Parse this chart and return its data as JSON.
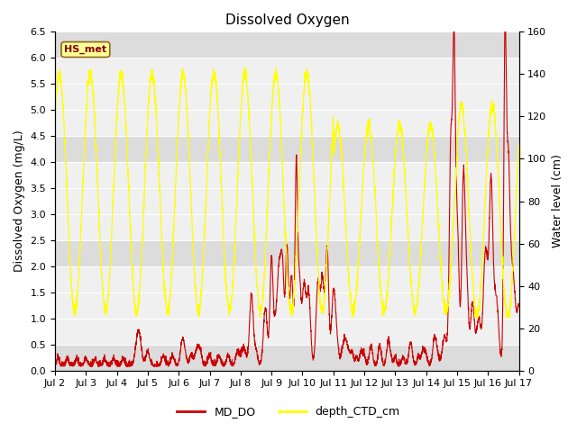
{
  "title": "Dissolved Oxygen",
  "ylabel_left": "Dissolved Oxygen (mg/L)",
  "ylabel_right": "Water level (cm)",
  "ylim_left": [
    0.0,
    6.5
  ],
  "ylim_right": [
    0,
    160
  ],
  "yticks_left": [
    0.0,
    0.5,
    1.0,
    1.5,
    2.0,
    2.5,
    3.0,
    3.5,
    4.0,
    4.5,
    5.0,
    5.5,
    6.0,
    6.5
  ],
  "yticks_right": [
    0,
    20,
    40,
    60,
    80,
    100,
    120,
    140,
    160
  ],
  "xtick_labels": [
    "Jul 2",
    "Jul 3",
    "Jul 4",
    "Jul 5",
    "Jul 6",
    "Jul 7",
    "Jul 8",
    "Jul 9",
    "Jul 10",
    "Jul 11",
    "Jul 12",
    "Jul 13",
    "Jul 14",
    "Jul 15",
    "Jul 16",
    "Jul 17"
  ],
  "color_do": "#cc0000",
  "color_depth": "#ffff00",
  "legend_label_do": "MD_DO",
  "legend_label_depth": "depth_CTD_cm",
  "annotation_text": "HS_met",
  "annotation_color": "#8b0000",
  "annotation_bg": "#ffff99",
  "annotation_border": "#8b6914",
  "plot_bg": "#e8e8e8",
  "band_light": "#f0f0f0",
  "band_dark": "#dcdcdc",
  "title_fontsize": 11,
  "label_fontsize": 9,
  "tick_fontsize": 8
}
